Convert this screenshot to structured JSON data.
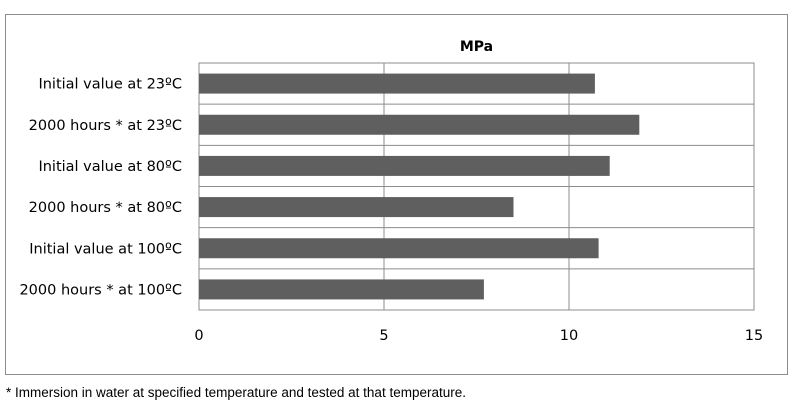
{
  "chart_data": {
    "type": "bar",
    "orientation": "horizontal",
    "title": "MPa",
    "categories": [
      "Initial value at 23ºC",
      "2000 hours * at 23ºC",
      "Initial value at 80ºC",
      "2000 hours * at 80ºC",
      "Initial value at 100ºC",
      "2000 hours * at 100ºC"
    ],
    "values": [
      10.7,
      11.9,
      11.1,
      8.5,
      10.8,
      7.7
    ],
    "xlim": [
      0,
      15
    ],
    "xticks": [
      "0",
      "5",
      "10",
      "15"
    ],
    "xlabel": "",
    "ylabel": "",
    "grid": true,
    "legend": "none",
    "bar_color": "#5f5f5f",
    "grid_color": "#8c8c8c"
  },
  "footnote": "* Immersion in water at specified temperature and tested at that temperature."
}
